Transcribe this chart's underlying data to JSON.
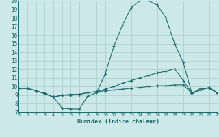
{
  "xlabel": "Humidex (Indice chaleur)",
  "bg_color": "#cce8e8",
  "grid_color": "#aacccc",
  "line_color": "#1a6b6b",
  "xlim": [
    0,
    23
  ],
  "ylim": [
    7,
    20
  ],
  "xticks": [
    0,
    1,
    2,
    3,
    4,
    5,
    6,
    7,
    8,
    9,
    10,
    11,
    12,
    13,
    14,
    15,
    16,
    17,
    18,
    19,
    20,
    21,
    22,
    23
  ],
  "yticks": [
    7,
    8,
    9,
    10,
    11,
    12,
    13,
    14,
    15,
    16,
    17,
    18,
    19,
    20
  ],
  "line1_x": [
    0,
    1,
    2,
    3,
    4,
    5,
    6,
    7,
    8,
    9,
    10,
    11,
    12,
    13,
    14,
    15,
    16,
    17,
    18,
    19,
    20,
    21,
    22,
    23
  ],
  "line1_y": [
    9.8,
    9.8,
    9.5,
    9.2,
    8.8,
    7.5,
    7.4,
    7.4,
    8.9,
    9.3,
    11.5,
    14.7,
    17.2,
    19.2,
    20.0,
    20.0,
    19.5,
    18.0,
    15.0,
    12.8,
    9.2,
    9.8,
    9.8,
    9.2
  ],
  "line2_x": [
    0,
    1,
    2,
    3,
    4,
    5,
    6,
    7,
    8,
    9,
    10,
    11,
    12,
    13,
    14,
    15,
    16,
    17,
    18,
    19,
    20,
    21,
    22,
    23
  ],
  "line2_y": [
    9.8,
    9.8,
    9.5,
    9.2,
    8.8,
    9.0,
    9.0,
    9.1,
    9.3,
    9.4,
    9.7,
    10.0,
    10.4,
    10.7,
    11.0,
    11.3,
    11.6,
    11.8,
    12.1,
    10.7,
    9.2,
    9.6,
    9.9,
    9.2
  ],
  "line3_x": [
    0,
    1,
    2,
    3,
    4,
    5,
    6,
    7,
    8,
    9,
    10,
    11,
    12,
    13,
    14,
    15,
    16,
    17,
    18,
    19,
    20,
    21,
    22,
    23
  ],
  "line3_y": [
    9.8,
    9.8,
    9.5,
    9.2,
    8.8,
    9.0,
    9.1,
    9.1,
    9.3,
    9.4,
    9.5,
    9.6,
    9.7,
    9.8,
    9.9,
    10.0,
    10.1,
    10.1,
    10.2,
    10.2,
    9.2,
    9.6,
    9.9,
    9.2
  ]
}
